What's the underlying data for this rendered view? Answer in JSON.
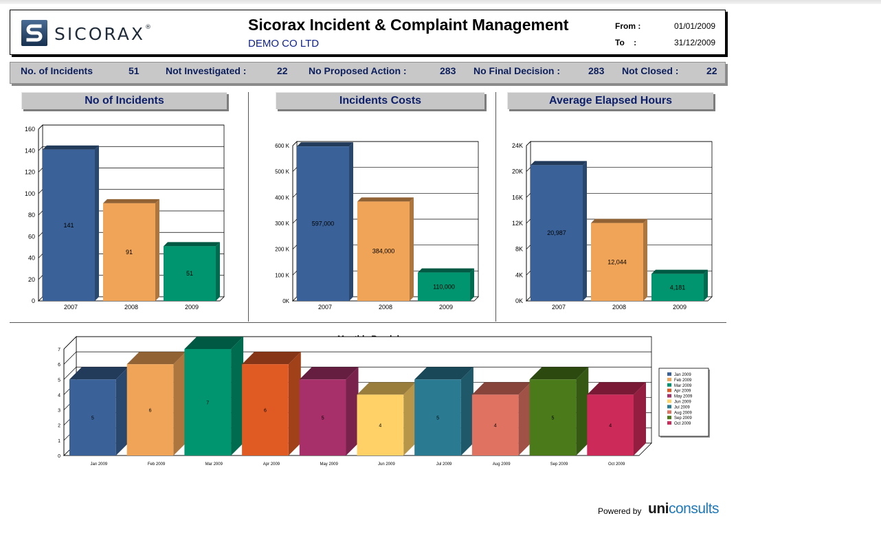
{
  "header": {
    "logo_text": "SICORAX",
    "logo_tm": "®",
    "title": "Sicorax Incident & Complaint Management",
    "company": "DEMO CO LTD",
    "from_label": "From :",
    "from_value": "01/01/2009",
    "to_label": "To    :",
    "to_value": "31/12/2009"
  },
  "stats": [
    {
      "label": "No. of Incidents",
      "value": "51"
    },
    {
      "label": "Not Investigated :",
      "value": "22"
    },
    {
      "label": "No Proposed Action :",
      "value": "283"
    },
    {
      "label": "No Final Decision :",
      "value": "283"
    },
    {
      "label": "Not Closed :",
      "value": "22"
    }
  ],
  "panels": {
    "incidents_title": "No of Incidents",
    "costs_title": "Incidents Costs",
    "hours_title": "Average Elapsed Hours"
  },
  "chart_data": [
    {
      "type": "bar",
      "title": "No of Incidents",
      "categories": [
        "2007",
        "2008",
        "2009"
      ],
      "values": [
        141,
        91,
        51
      ],
      "data_labels": [
        "141",
        "91",
        "51"
      ],
      "ylim": [
        0,
        160
      ],
      "yticks": [
        "0",
        "20",
        "40",
        "60",
        "80",
        "100",
        "120",
        "140",
        "160"
      ],
      "colors": [
        "#3a6298",
        "#f0a457",
        "#00956e"
      ],
      "grid": true
    },
    {
      "type": "bar",
      "title": "Incidents Costs",
      "categories": [
        "2007",
        "2008",
        "2009"
      ],
      "values": [
        597000,
        384000,
        110000
      ],
      "data_labels": [
        "597,000",
        "384,000",
        "110,000"
      ],
      "ylim": [
        0,
        600000
      ],
      "yticks": [
        "0K",
        "100 K",
        "200 K",
        "300 K",
        "400 K",
        "500 K",
        "600 K"
      ],
      "colors": [
        "#3a6298",
        "#f0a457",
        "#00956e"
      ],
      "grid": true
    },
    {
      "type": "bar",
      "title": "Average Elapsed Hours",
      "categories": [
        "2007",
        "2008",
        "2009"
      ],
      "values": [
        20987,
        12044,
        4181
      ],
      "data_labels": [
        "20,987",
        "12,044",
        "4,181"
      ],
      "ylim": [
        0,
        24000
      ],
      "yticks": [
        "0K",
        "4K",
        "8K",
        "12K",
        "16K",
        "20K",
        "24K"
      ],
      "colors": [
        "#3a6298",
        "#f0a457",
        "#00956e"
      ],
      "grid": true
    },
    {
      "type": "bar",
      "title": "Monthly Breakdown",
      "categories": [
        "Jan 2009",
        "Feb 2009",
        "Mar 2009",
        "Apr 2009",
        "May 2009",
        "Jun 2009",
        "Jul 2009",
        "Aug 2009",
        "Sep 2009",
        "Oct 2009"
      ],
      "values": [
        5,
        6,
        7,
        6,
        5,
        4,
        5,
        4,
        5,
        4
      ],
      "data_labels": [
        "5",
        "6",
        "7",
        "6",
        "5",
        "4",
        "5",
        "4",
        "5",
        "4"
      ],
      "ylim": [
        0,
        7
      ],
      "yticks": [
        "0",
        "1",
        "2",
        "3",
        "4",
        "5",
        "6",
        "7"
      ],
      "colors": [
        "#3a6298",
        "#f0a457",
        "#00956e",
        "#e05a24",
        "#a8306a",
        "#ffd166",
        "#2a7a92",
        "#e07262",
        "#4a7a1a",
        "#cc2a58"
      ],
      "legend": "right",
      "grid": true
    }
  ],
  "footer": {
    "powered_by": "Powered by",
    "brand_a": "uni",
    "brand_b": "consults"
  }
}
